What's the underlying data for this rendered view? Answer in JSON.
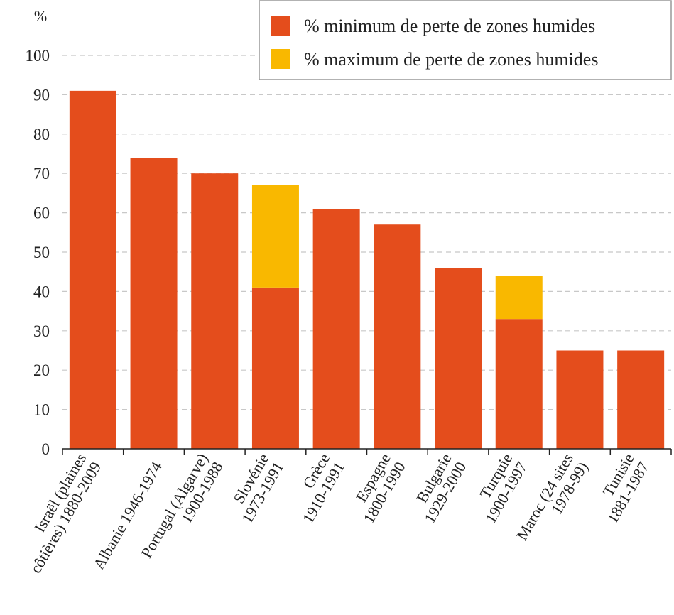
{
  "colors": {
    "min_series": "#e44d1c",
    "max_series": "#f9b800",
    "legend_border": "#999999"
  },
  "chart_data": {
    "type": "bar",
    "stacked": true,
    "y_unit_label": "%",
    "ylim": [
      0,
      100
    ],
    "yticks": [
      0,
      10,
      20,
      30,
      40,
      50,
      60,
      70,
      80,
      90,
      100
    ],
    "grid": true,
    "legend_position": "top-right",
    "categories": [
      [
        "Israël (plaines",
        "côtières) 1880-2009"
      ],
      [
        "Albanie 1946-1974"
      ],
      [
        "Portugal (Algarve)",
        "1900-1988"
      ],
      [
        "Slovénie",
        "1973-1991"
      ],
      [
        "Grèce",
        "1910-1991"
      ],
      [
        "Espagne",
        "1800-1990"
      ],
      [
        "Bulgarie",
        "1929-2000"
      ],
      [
        "Turquie",
        "1900-1997"
      ],
      [
        "Maroc (24 sites",
        "1978-99)"
      ],
      [
        "Tunisie",
        "1881-1987"
      ]
    ],
    "series": [
      {
        "name": "% minimum de perte de zones humides",
        "values": [
          91,
          74,
          70,
          41,
          61,
          57,
          46,
          33,
          25,
          25
        ]
      },
      {
        "name": "% maximum de perte de zones humides",
        "values": [
          0,
          0,
          0,
          26,
          0,
          0,
          0,
          11,
          0,
          0
        ]
      }
    ]
  }
}
